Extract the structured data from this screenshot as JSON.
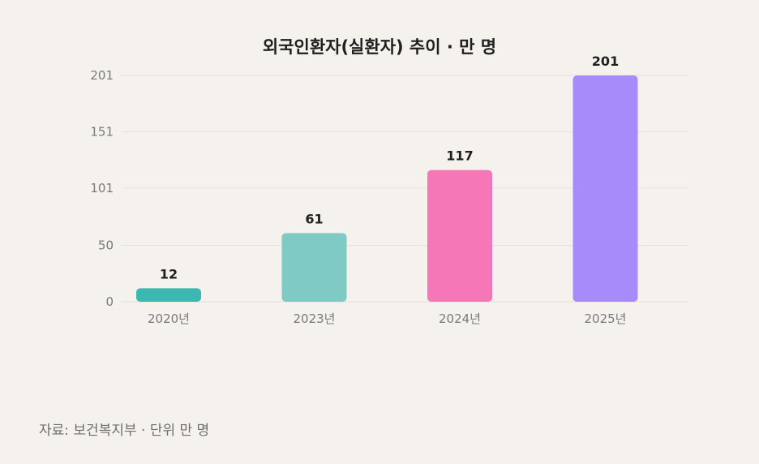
{
  "chart_data": {
    "type": "bar",
    "title": "외국인환자(실환자) 추이 · 만 명",
    "categories": [
      "2020년",
      "2023년",
      "2024년",
      "2025년"
    ],
    "values": [
      12,
      61,
      117,
      201
    ],
    "colors": [
      "#3cb8b0",
      "#80cac6",
      "#f577b8",
      "#a78bfa"
    ],
    "yticks": [
      0,
      50,
      101,
      151,
      201
    ],
    "ylim": [
      0,
      201
    ],
    "grid": true,
    "legend": "none"
  },
  "source_note": "자료: 보건복지부 · 단위 만 명"
}
